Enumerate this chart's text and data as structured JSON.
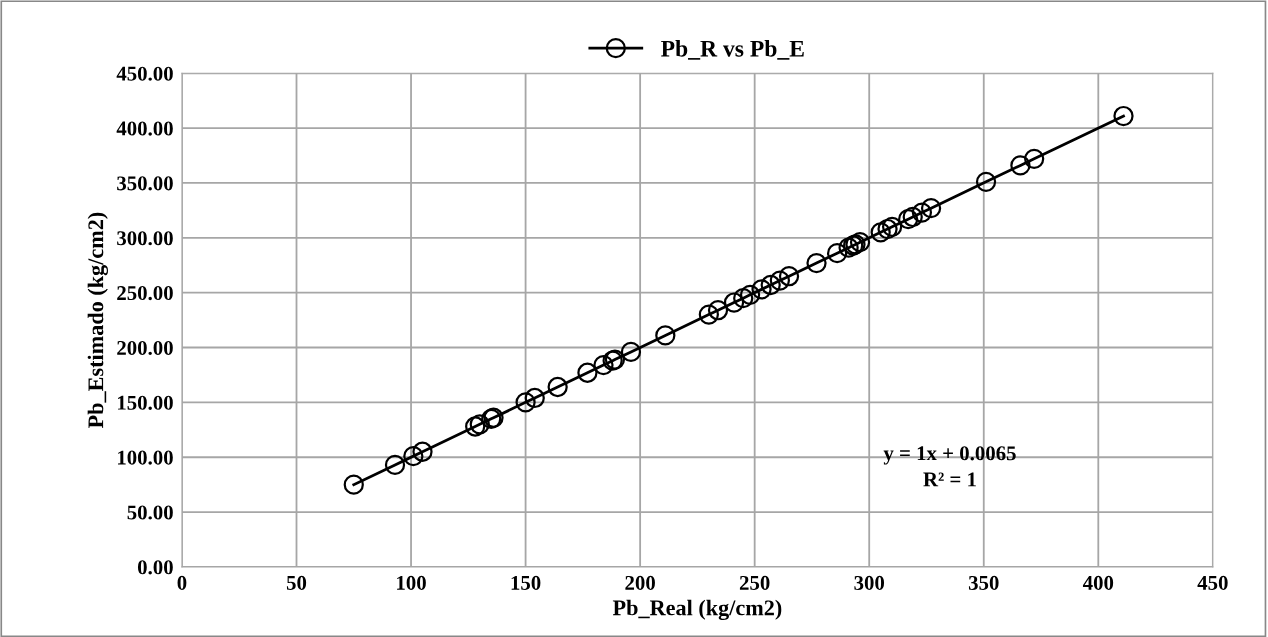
{
  "chart_data": {
    "type": "line",
    "xlabel": "Pb_Real (kg/cm2)",
    "ylabel": "Pb_Estimado (kg/cm2)",
    "x": [
      75,
      93,
      101,
      105,
      128,
      130,
      135,
      136,
      150,
      154,
      164,
      177,
      184,
      188,
      189,
      196,
      211,
      230,
      234,
      241,
      245,
      248,
      253,
      257,
      261,
      265,
      277,
      286,
      291,
      293,
      294,
      296,
      305,
      308,
      310,
      317,
      319,
      323,
      327,
      351,
      366,
      372,
      411
    ],
    "series": [
      {
        "name": "Pb_R vs Pb_E",
        "color": "#000000",
        "values": [
          75,
          93,
          101,
          105,
          128,
          130,
          135,
          136,
          150,
          154,
          164,
          177,
          184,
          188,
          189,
          196,
          211,
          230,
          234,
          241,
          245,
          248,
          253,
          257,
          261,
          265,
          277,
          286,
          291,
          293,
          294,
          296,
          305,
          308,
          310,
          317,
          319,
          323,
          327,
          351,
          366,
          372,
          411
        ]
      }
    ],
    "xlim": [
      0,
      450
    ],
    "xticks": [
      0,
      50,
      100,
      150,
      200,
      250,
      300,
      350,
      400,
      450
    ],
    "ylim": [
      0,
      450
    ],
    "yticks": [
      {
        "value": 0,
        "label": "0.00"
      },
      {
        "value": 50,
        "label": "50.00"
      },
      {
        "value": 100,
        "label": "100.00"
      },
      {
        "value": 150,
        "label": "150.00"
      },
      {
        "value": 200,
        "label": "200.00"
      },
      {
        "value": 250,
        "label": "250.00"
      },
      {
        "value": 300,
        "label": "300.00"
      },
      {
        "value": 350,
        "label": "350.00"
      },
      {
        "value": 400,
        "label": "400.00"
      },
      {
        "value": 450,
        "label": "450.00"
      }
    ],
    "grid": true,
    "legend": "top",
    "marker": "circle",
    "line_style": "solid",
    "annotations": [
      "y = 1x + 0.0065\nR² = 1"
    ]
  }
}
